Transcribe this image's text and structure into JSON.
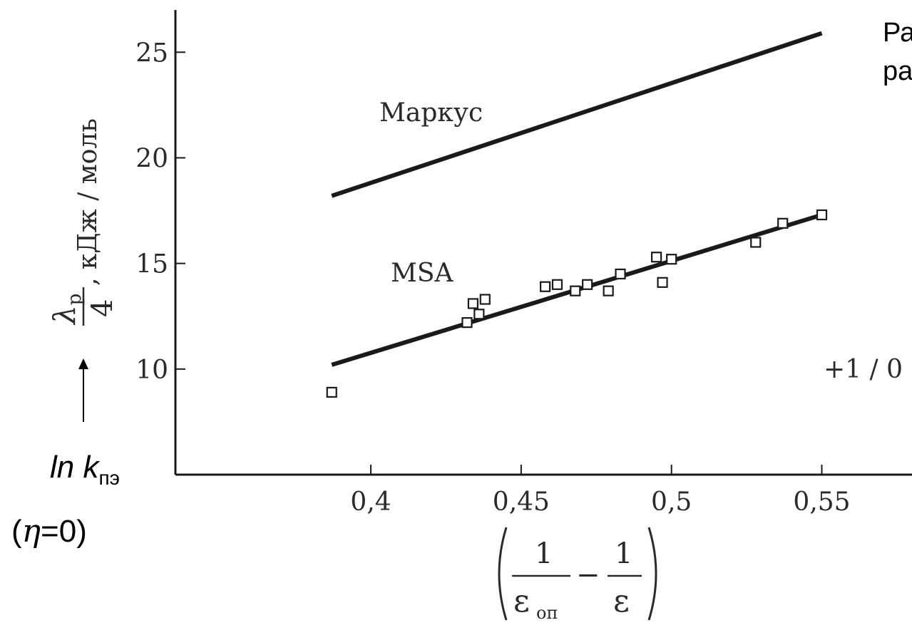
{
  "chart_data": {
    "type": "scatter",
    "xlim": [
      0.335,
      0.58
    ],
    "ylim": [
      5,
      27
    ],
    "x_ticks": [
      0.4,
      0.45,
      0.5,
      0.55
    ],
    "x_tick_labels": [
      "0,4",
      "0,45",
      "0,5",
      "0,55"
    ],
    "y_ticks": [
      10,
      15,
      20,
      25
    ],
    "y_tick_labels": [
      "10",
      "15",
      "20",
      "25"
    ],
    "grid": false,
    "ylabel": {
      "lambda": "λ",
      "sub": "р",
      "den": "4",
      "tail": ", кДж / моль"
    },
    "xlabel": {
      "one_a": "1",
      "eps_a": "ε",
      "eps_sub": "оп",
      "minus": "−",
      "one_b": "1",
      "eps_b": "ε"
    },
    "series": [
      {
        "name": "Маркус",
        "kind": "line",
        "x": [
          0.387,
          0.55
        ],
        "y": [
          18.2,
          25.9
        ],
        "color": "#1a1a1a"
      },
      {
        "name": "MSA",
        "kind": "line",
        "x": [
          0.387,
          0.55
        ],
        "y": [
          10.2,
          17.3
        ],
        "color": "#1a1a1a"
      },
      {
        "name": "",
        "kind": "points",
        "marker": "open-square",
        "color": "#1a1a1a",
        "points": [
          [
            0.387,
            8.9
          ],
          [
            0.432,
            12.2
          ],
          [
            0.434,
            13.1
          ],
          [
            0.436,
            12.6
          ],
          [
            0.438,
            13.3
          ],
          [
            0.458,
            13.9
          ],
          [
            0.462,
            14.0
          ],
          [
            0.468,
            13.7
          ],
          [
            0.472,
            14.0
          ],
          [
            0.479,
            13.7
          ],
          [
            0.483,
            14.5
          ],
          [
            0.495,
            15.3
          ],
          [
            0.497,
            14.1
          ],
          [
            0.5,
            15.2
          ],
          [
            0.528,
            16.0
          ],
          [
            0.537,
            16.9
          ],
          [
            0.55,
            17.3
          ]
        ]
      }
    ]
  },
  "annotations": {
    "top_right_line1": "Ра",
    "top_right_line2": "ра",
    "right_mid": "+1 / 0",
    "ln_k": "ln k",
    "ln_k_sub": "пэ",
    "eta_open": "(",
    "eta": "η",
    "eta_tail": "=0)"
  }
}
